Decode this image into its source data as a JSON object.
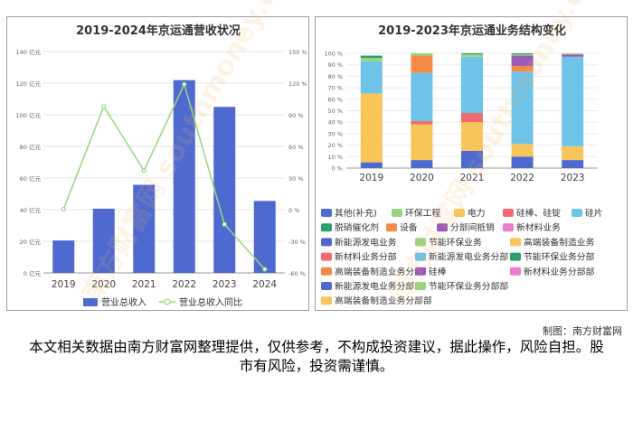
{
  "left_chart": {
    "title": "2019-2024年京运通营收状况",
    "y_left_ticks": [
      "0 亿元",
      "20 亿元",
      "40 亿元",
      "60 亿元",
      "80 亿元",
      "100 亿元",
      "120 亿元",
      "140 亿元"
    ],
    "y_right_ticks": [
      "-60 %",
      "-30 %",
      "0 %",
      "30 %",
      "60 %",
      "90 %",
      "120 %",
      "150 %"
    ],
    "legend": [
      "营业总收入",
      "营业总收入同比"
    ],
    "colors": {
      "bar": "#4e6ad0",
      "line": "#97d680"
    }
  },
  "right_chart": {
    "title": "2019-2023年京运通业务结构变化",
    "y_ticks": [
      "0 %",
      "10 %",
      "20 %",
      "30 %",
      "40 %",
      "50 %",
      "60 %",
      "70 %",
      "80 %",
      "90 %",
      "100 %"
    ],
    "legend": [
      {
        "label": "其他(补充)",
        "color": "#4e6ad0"
      },
      {
        "label": "环保工程",
        "color": "#97d680"
      },
      {
        "label": "电力",
        "color": "#f7c55a"
      },
      {
        "label": "硅棒、硅锭",
        "color": "#f26b6e"
      },
      {
        "label": "硅片",
        "color": "#6ec3e8"
      },
      {
        "label": "脱硝催化剂",
        "color": "#2e9e6b"
      },
      {
        "label": "设备",
        "color": "#f58a48"
      },
      {
        "label": "分部间抵销",
        "color": "#9b59b6"
      },
      {
        "label": "新材料业务",
        "color": "#ea7ccc"
      },
      {
        "label": "新能源发电业务",
        "color": "#4e6ad0"
      },
      {
        "label": "节能环保业务",
        "color": "#97d680"
      },
      {
        "label": "高端装备制造业务",
        "color": "#f7c55a"
      },
      {
        "label": "新材料业务分部",
        "color": "#f26b6e"
      },
      {
        "label": "新能源发电业务分部",
        "color": "#6ec3e8"
      },
      {
        "label": "节能环保业务分部",
        "color": "#2e9e6b"
      },
      {
        "label": "高端装备制造业务分部",
        "color": "#f58a48"
      },
      {
        "label": "硅棒",
        "color": "#9b59b6"
      },
      {
        "label": "新材料业务分部部",
        "color": "#ea7ccc"
      },
      {
        "label": "新能源发电业务分部部",
        "color": "#4e6ad0"
      },
      {
        "label": "节能环保业务分部部",
        "color": "#97d680"
      },
      {
        "label": "高端装备制造业务分部部",
        "color": "#f7c55a"
      }
    ]
  },
  "chart_data": [
    {
      "type": "bar",
      "title": "2019-2024年京运通营收状况",
      "categories": [
        "2019",
        "2020",
        "2021",
        "2022",
        "2023",
        "2024"
      ],
      "series": [
        {
          "name": "营业总收入",
          "type": "bar",
          "axis": "left",
          "values": [
            20.5,
            40.6,
            55.7,
            121.9,
            105.0,
            45.5
          ]
        },
        {
          "name": "营业总收入同比",
          "type": "line",
          "axis": "right",
          "values": [
            0.5,
            98.0,
            37.0,
            118.9,
            -13.9,
            -56.6
          ]
        }
      ],
      "ylim_left": [
        0,
        140
      ],
      "ylim_right": [
        -60,
        150
      ],
      "legend_position": "bottom"
    },
    {
      "type": "bar",
      "stacked": true,
      "title": "2019-2023年京运通业务结构变化",
      "categories": [
        "2019",
        "2020",
        "2021",
        "2022",
        "2023"
      ],
      "ylim": [
        0,
        100
      ],
      "series": [
        {
          "name": "其他(补充)",
          "color": "#4e6ad0",
          "values": [
            5,
            7,
            15,
            10,
            7
          ]
        },
        {
          "name": "电力",
          "color": "#f7c55a",
          "values": [
            60,
            31,
            25,
            11,
            12
          ]
        },
        {
          "name": "硅棒、硅锭",
          "color": "#f26b6e",
          "values": [
            0,
            3,
            8,
            0,
            0
          ]
        },
        {
          "name": "硅片",
          "color": "#6ec3e8",
          "values": [
            28,
            42,
            49,
            63,
            78
          ]
        },
        {
          "name": "设备",
          "color": "#f58a48",
          "values": [
            0,
            15,
            0,
            5,
            0
          ]
        },
        {
          "name": "分部间抵销",
          "color": "#9b59b6",
          "values": [
            0,
            0,
            0,
            9,
            2
          ]
        },
        {
          "name": "环保工程",
          "color": "#97d680",
          "values": [
            3,
            2,
            2,
            1,
            1
          ]
        },
        {
          "name": "脱硝催化剂",
          "color": "#2e9e6b",
          "values": [
            2,
            0,
            1,
            1,
            0
          ]
        }
      ],
      "legend_position": "bottom"
    }
  ],
  "credit": "制图：南方财富网",
  "disclaimer": "本文相关数据由南方财富网整理提供，仅供参考，不构成投资建议，据此操作，风险自担。股市有风险，投资需谨慎。",
  "watermark": "南方财富网 southmoney.com"
}
